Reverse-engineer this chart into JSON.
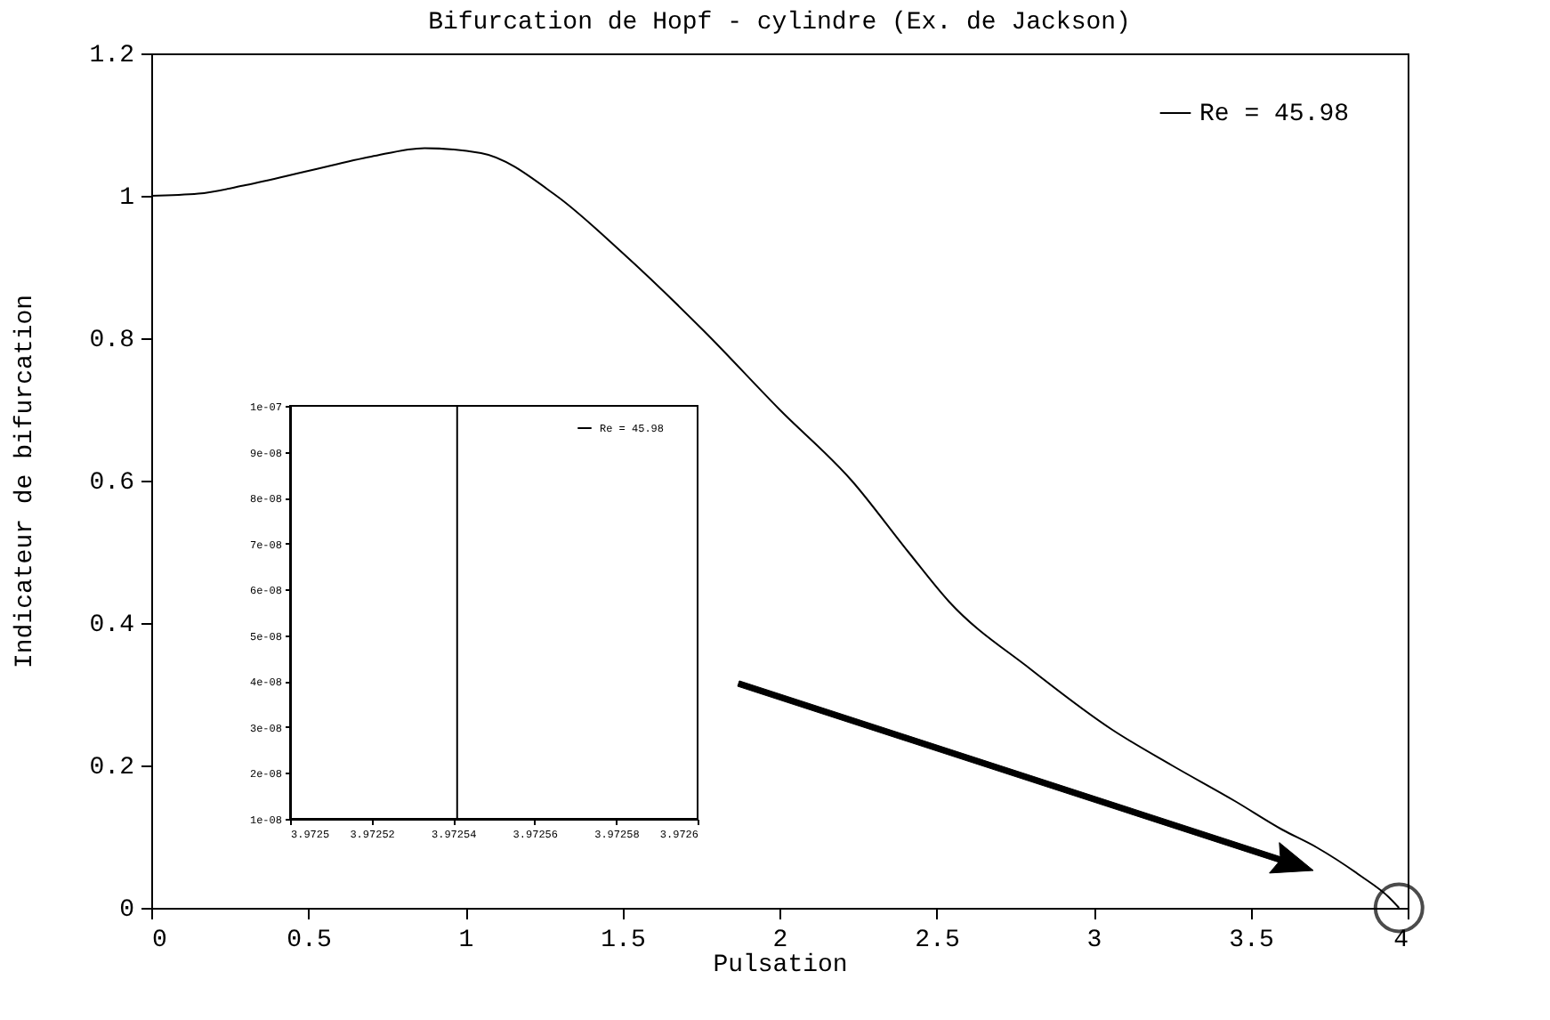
{
  "chart_data": [
    {
      "type": "line",
      "title": "Bifurcation de Hopf - cylindre (Ex. de Jackson)",
      "xlabel": "Pulsation",
      "ylabel": "Indicateur de bifurcation",
      "x": [
        0,
        0.15,
        0.3,
        0.5,
        0.7,
        0.87,
        1.05,
        1.29,
        1.5,
        1.76,
        2.0,
        2.23,
        2.41,
        2.54,
        2.8,
        3.06,
        3.25,
        3.45,
        3.6,
        3.71,
        3.85,
        3.94,
        3.9725
      ],
      "series": [
        {
          "name": "Re  = 45.98",
          "color": "#000000",
          "values": [
            1.0,
            1.003,
            1.015,
            1.035,
            1.055,
            1.067,
            1.06,
            1.0,
            0.92,
            0.81,
            0.7,
            0.6,
            0.5,
            0.43,
            0.335,
            0.25,
            0.2,
            0.15,
            0.11,
            0.085,
            0.045,
            0.015,
            0.0
          ]
        }
      ],
      "xlim": [
        0,
        4
      ],
      "ylim": [
        0,
        1.2
      ],
      "xticks": [
        0,
        0.5,
        1,
        1.5,
        2,
        2.5,
        3,
        3.5,
        4
      ],
      "yticks": [
        0,
        0.2,
        0.4,
        0.6,
        0.8,
        1,
        1.2
      ],
      "grid": false,
      "legend": "top right",
      "line_style": "solid",
      "marker": "none"
    },
    {
      "type": "line",
      "x": [
        3.972541,
        3.972541
      ],
      "series": [
        {
          "name": "Re  = 45.98",
          "color": "#000000",
          "values": [
            1e-08,
            1e-07
          ]
        }
      ],
      "xlim": [
        3.9725,
        3.9726
      ],
      "ylim": [
        1e-08,
        1e-07
      ],
      "xticks": [
        3.9725,
        3.97252,
        3.97254,
        3.97256,
        3.97258,
        3.9726
      ],
      "yticks": [
        {
          "value": 1e-08,
          "label": "1e-08"
        },
        {
          "value": 2e-08,
          "label": "2e-08"
        },
        {
          "value": 3e-08,
          "label": "3e-08"
        },
        {
          "value": 4e-08,
          "label": "4e-08"
        },
        {
          "value": 5e-08,
          "label": "5e-08"
        },
        {
          "value": 6e-08,
          "label": "6e-08"
        },
        {
          "value": 7e-08,
          "label": "7e-08"
        },
        {
          "value": 8e-08,
          "label": "8e-08"
        },
        {
          "value": 9e-08,
          "label": "9e-08"
        },
        {
          "value": 1e-07,
          "label": "1e-07"
        }
      ],
      "grid": false,
      "legend": "top right",
      "line_style": "solid",
      "marker": "none"
    }
  ]
}
